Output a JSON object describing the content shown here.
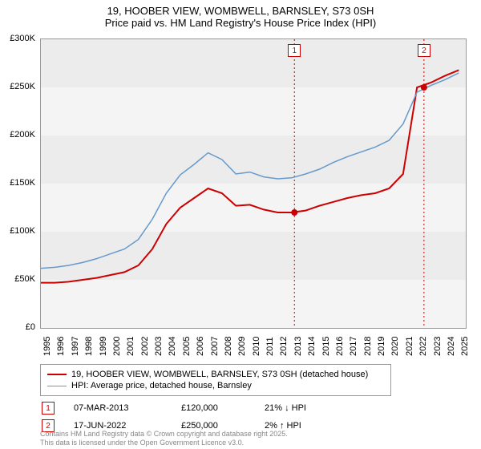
{
  "title": "19, HOOBER VIEW, WOMBWELL, BARNSLEY, S73 0SH",
  "subtitle": "Price paid vs. HM Land Registry's House Price Index (HPI)",
  "chart": {
    "type": "line",
    "background_stripes": [
      "#f4f4f4",
      "#ececec"
    ],
    "border_color": "#999999",
    "ylim": [
      0,
      300000
    ],
    "ytick_step": 50000,
    "y_labels": [
      "£0",
      "£50K",
      "£100K",
      "£150K",
      "£200K",
      "£250K",
      "£300K"
    ],
    "xlim": [
      1995,
      2025.5
    ],
    "x_labels": [
      "1995",
      "1996",
      "1997",
      "1998",
      "1999",
      "2000",
      "2001",
      "2002",
      "2003",
      "2004",
      "2005",
      "2006",
      "2007",
      "2008",
      "2009",
      "2010",
      "2011",
      "2012",
      "2013",
      "2014",
      "2015",
      "2016",
      "2017",
      "2018",
      "2019",
      "2020",
      "2021",
      "2022",
      "2023",
      "2024",
      "2025"
    ],
    "series": [
      {
        "name": "property",
        "label": "19, HOOBER VIEW, WOMBWELL, BARNSLEY, S73 0SH (detached house)",
        "color": "#cc0000",
        "line_width": 2,
        "data": [
          [
            1995,
            47000
          ],
          [
            1996,
            47000
          ],
          [
            1997,
            48000
          ],
          [
            1998,
            50000
          ],
          [
            1999,
            52000
          ],
          [
            2000,
            55000
          ],
          [
            2001,
            58000
          ],
          [
            2002,
            65000
          ],
          [
            2003,
            82000
          ],
          [
            2004,
            108000
          ],
          [
            2005,
            125000
          ],
          [
            2006,
            135000
          ],
          [
            2007,
            145000
          ],
          [
            2008,
            140000
          ],
          [
            2009,
            127000
          ],
          [
            2010,
            128000
          ],
          [
            2011,
            123000
          ],
          [
            2012,
            120000
          ],
          [
            2013,
            120000
          ],
          [
            2014,
            122000
          ],
          [
            2015,
            127000
          ],
          [
            2016,
            131000
          ],
          [
            2017,
            135000
          ],
          [
            2018,
            138000
          ],
          [
            2019,
            140000
          ],
          [
            2020,
            145000
          ],
          [
            2021,
            160000
          ],
          [
            2022,
            250000
          ],
          [
            2023,
            255000
          ],
          [
            2024,
            262000
          ],
          [
            2025,
            268000
          ]
        ]
      },
      {
        "name": "hpi",
        "label": "HPI: Average price, detached house, Barnsley",
        "color": "#6699cc",
        "line_width": 1.5,
        "data": [
          [
            1995,
            62000
          ],
          [
            1996,
            63000
          ],
          [
            1997,
            65000
          ],
          [
            1998,
            68000
          ],
          [
            1999,
            72000
          ],
          [
            2000,
            77000
          ],
          [
            2001,
            82000
          ],
          [
            2002,
            92000
          ],
          [
            2003,
            113000
          ],
          [
            2004,
            140000
          ],
          [
            2005,
            159000
          ],
          [
            2006,
            170000
          ],
          [
            2007,
            182000
          ],
          [
            2008,
            175000
          ],
          [
            2009,
            160000
          ],
          [
            2010,
            162000
          ],
          [
            2011,
            157000
          ],
          [
            2012,
            155000
          ],
          [
            2013,
            156000
          ],
          [
            2014,
            160000
          ],
          [
            2015,
            165000
          ],
          [
            2016,
            172000
          ],
          [
            2017,
            178000
          ],
          [
            2018,
            183000
          ],
          [
            2019,
            188000
          ],
          [
            2020,
            195000
          ],
          [
            2021,
            212000
          ],
          [
            2022,
            245000
          ],
          [
            2023,
            252000
          ],
          [
            2024,
            258000
          ],
          [
            2025,
            265000
          ]
        ]
      }
    ],
    "markers": [
      {
        "num": "1",
        "x": 2013.2,
        "y": 120000,
        "color": "#cc0000",
        "date": "07-MAR-2013",
        "price": "£120,000",
        "hpi_delta": "21% ↓ HPI"
      },
      {
        "num": "2",
        "x": 2022.5,
        "y": 250000,
        "color": "#cc0000",
        "date": "17-JUN-2022",
        "price": "£250,000",
        "hpi_delta": "2% ↑ HPI"
      }
    ]
  },
  "footer": {
    "line1": "Contains HM Land Registry data © Crown copyright and database right 2025.",
    "line2": "This data is licensed under the Open Government Licence v3.0."
  }
}
